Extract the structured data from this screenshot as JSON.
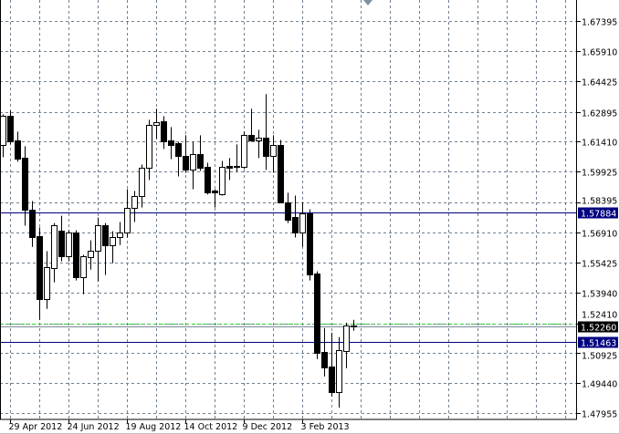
{
  "chart_data": {
    "type": "candlestick",
    "title": "",
    "xlabel": "",
    "ylabel": "",
    "ylim": [
      1.4764,
      1.6844
    ],
    "grid": true,
    "colors": {
      "background": "#ffffff",
      "grid": "#708090",
      "bull_body": "#ffffff",
      "bear_body": "#000000",
      "candle_outline": "#000000",
      "level_line": "#000080",
      "bid_line": "#778899",
      "ask_line": "#32cd32"
    },
    "y_ticks": [
      "1.67395",
      "1.65910",
      "1.64425",
      "1.62895",
      "1.61410",
      "1.59925",
      "1.58395",
      "1.56910",
      "1.55425",
      "1.53940",
      "1.52410",
      "1.50925",
      "1.49440",
      "1.47955"
    ],
    "x_tick_labels": [
      "29 Apr 2012",
      "24 Jun 2012",
      "19 Aug 2012",
      "14 Oct 2012",
      "9 Dec 2012",
      "3 Feb 2013"
    ],
    "ohlc": [
      [
        1.6123,
        1.6277,
        1.6064,
        1.6268
      ],
      [
        1.6268,
        1.6296,
        1.6128,
        1.6141
      ],
      [
        1.6146,
        1.6191,
        1.6042,
        1.6055
      ],
      [
        1.606,
        1.6119,
        1.5725,
        1.5802
      ],
      [
        1.5806,
        1.5847,
        1.562,
        1.567
      ],
      [
        1.5675,
        1.5716,
        1.5258,
        1.5362
      ],
      [
        1.5362,
        1.5598,
        1.5312,
        1.5521
      ],
      [
        1.5516,
        1.5738,
        1.5444,
        1.5729
      ],
      [
        1.5702,
        1.5774,
        1.5548,
        1.5575
      ],
      [
        1.5575,
        1.5702,
        1.5548,
        1.5693
      ],
      [
        1.5693,
        1.5702,
        1.5453,
        1.5471
      ],
      [
        1.5471,
        1.558,
        1.5385,
        1.5575
      ],
      [
        1.5571,
        1.5652,
        1.5507,
        1.5602
      ],
      [
        1.5602,
        1.5765,
        1.5448,
        1.5729
      ],
      [
        1.5729,
        1.5738,
        1.548,
        1.5629
      ],
      [
        1.5629,
        1.5697,
        1.5539,
        1.567
      ],
      [
        1.567,
        1.5743,
        1.5629,
        1.5693
      ],
      [
        1.5693,
        1.5906,
        1.5666,
        1.5811
      ],
      [
        1.5811,
        1.5897,
        1.5743,
        1.5874
      ],
      [
        1.5874,
        1.6028,
        1.5815,
        1.601
      ],
      [
        1.601,
        1.625,
        1.5951,
        1.6223
      ],
      [
        1.6223,
        1.6305,
        1.6155,
        1.6237
      ],
      [
        1.6241,
        1.6268,
        1.6105,
        1.6141
      ],
      [
        1.6146,
        1.6214,
        1.6055,
        1.6123
      ],
      [
        1.6132,
        1.6141,
        1.5969,
        1.6069
      ],
      [
        1.6073,
        1.6173,
        1.5987,
        1.6001
      ],
      [
        1.6001,
        1.6141,
        1.5906,
        1.6078
      ],
      [
        1.6078,
        1.6173,
        1.5996,
        1.601
      ],
      [
        1.6015,
        1.6037,
        1.5879,
        1.5892
      ],
      [
        1.5897,
        1.5906,
        1.5815,
        1.5888
      ],
      [
        1.5879,
        1.6046,
        1.5874,
        1.6015
      ],
      [
        1.6019,
        1.606,
        1.5951,
        1.601
      ],
      [
        1.6015,
        1.6128,
        1.5992,
        1.6019
      ],
      [
        1.6015,
        1.6191,
        1.6006,
        1.6173
      ],
      [
        1.6173,
        1.6305,
        1.6141,
        1.6146
      ],
      [
        1.6146,
        1.62,
        1.606,
        1.616
      ],
      [
        1.616,
        1.6377,
        1.6001,
        1.6069
      ],
      [
        1.6069,
        1.6173,
        1.5987,
        1.6123
      ],
      [
        1.6123,
        1.615,
        1.5838,
        1.5838
      ],
      [
        1.5842,
        1.5888,
        1.5738,
        1.5756
      ],
      [
        1.577,
        1.5874,
        1.5666,
        1.5693
      ],
      [
        1.5693,
        1.5842,
        1.562,
        1.5784
      ],
      [
        1.5784,
        1.5806,
        1.5453,
        1.5484
      ],
      [
        1.5489,
        1.5498,
        1.5063,
        1.5095
      ],
      [
        1.5099,
        1.5217,
        1.4977,
        1.5022
      ],
      [
        1.5027,
        1.5194,
        1.4877,
        1.49
      ],
      [
        1.49,
        1.5172,
        1.4823,
        1.5108
      ],
      [
        1.5104,
        1.5244,
        1.5018,
        1.5231
      ],
      [
        1.5231,
        1.5258,
        1.5204,
        1.5226
      ]
    ],
    "horizontal_lines": [
      {
        "price": 1.57884,
        "label": "1.57884",
        "kind": "level"
      },
      {
        "price": 1.51463,
        "label": "1.51463",
        "kind": "level"
      }
    ],
    "bid": {
      "price": 1.5226,
      "label": "1.52260"
    },
    "ask_price": 1.5241
  }
}
